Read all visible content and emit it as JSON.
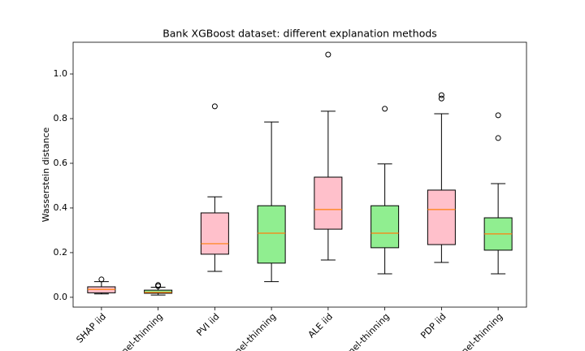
{
  "chart_data": {
    "type": "box",
    "title": "Bank XGBoost dataset: different explanation methods",
    "ylabel": "Wasserstein distance",
    "categories": [
      "SHAP iid",
      "rnel-thinning",
      "PVI iid",
      "rnel-thinning",
      "ALE iid",
      "rnel-thinning",
      "PDP iid",
      "rnel-thinning"
    ],
    "boxes": [
      {
        "low": 0.015,
        "q1": 0.02,
        "median": 0.035,
        "q3": 0.047,
        "high": 0.07,
        "outliers": [
          0.08
        ],
        "color": "#ffc0cb"
      },
      {
        "low": 0.01,
        "q1": 0.018,
        "median": 0.022,
        "q3": 0.032,
        "high": 0.045,
        "outliers": [
          0.05,
          0.055
        ],
        "color": "#90ee90"
      },
      {
        "low": 0.116,
        "q1": 0.193,
        "median": 0.24,
        "q3": 0.378,
        "high": 0.45,
        "outliers": [
          0.855
        ],
        "color": "#ffc0cb"
      },
      {
        "low": 0.07,
        "q1": 0.153,
        "median": 0.287,
        "q3": 0.41,
        "high": 0.785,
        "outliers": [],
        "color": "#90ee90"
      },
      {
        "low": 0.167,
        "q1": 0.305,
        "median": 0.393,
        "q3": 0.538,
        "high": 0.833,
        "outliers": [
          1.087
        ],
        "color": "#ffc0cb"
      },
      {
        "low": 0.105,
        "q1": 0.222,
        "median": 0.287,
        "q3": 0.41,
        "high": 0.597,
        "outliers": [
          0.844
        ],
        "color": "#90ee90"
      },
      {
        "low": 0.156,
        "q1": 0.236,
        "median": 0.393,
        "q3": 0.48,
        "high": 0.822,
        "outliers": [
          0.89,
          0.905
        ],
        "color": "#ffc0cb"
      },
      {
        "low": 0.105,
        "q1": 0.211,
        "median": 0.284,
        "q3": 0.356,
        "high": 0.509,
        "outliers": [
          0.713,
          0.815
        ],
        "color": "#90ee90"
      }
    ],
    "median_color": "#ff7f0e",
    "ylim": [
      -0.044,
      1.142
    ],
    "yticks": [
      {
        "value": 0,
        "label": "0.0"
      },
      0.2,
      0.4,
      0.6,
      0.8,
      {
        "value": 1,
        "label": "1.0"
      }
    ],
    "grid": false
  }
}
